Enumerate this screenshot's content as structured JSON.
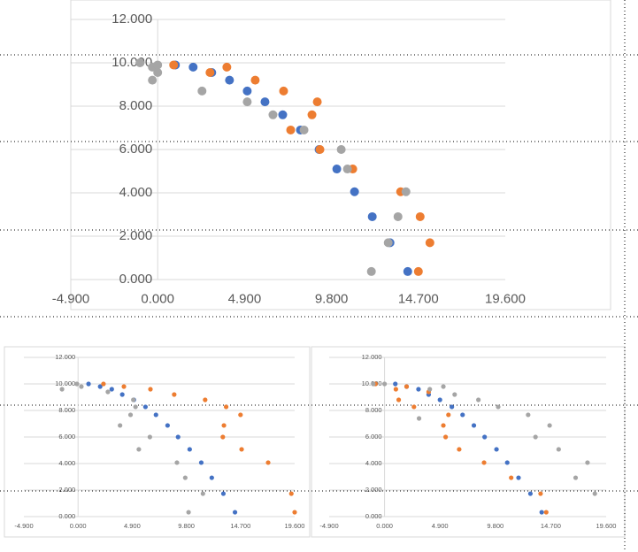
{
  "chart_data": [
    {
      "type": "scatter",
      "xlim": [
        -4.9,
        19.6
      ],
      "ylim": [
        0,
        12
      ],
      "grid": true,
      "xticks": [
        {
          "value": -4.9,
          "label": "-4.900"
        },
        {
          "value": 0,
          "label": "0.000"
        },
        {
          "value": 4.9,
          "label": "4.900"
        },
        {
          "value": 9.8,
          "label": "9.800"
        },
        {
          "value": 14.7,
          "label": "14.700"
        },
        {
          "value": 19.6,
          "label": "19.600"
        }
      ],
      "yticks": [
        {
          "value": 0,
          "label": "0.000"
        },
        {
          "value": 2,
          "label": "2.000"
        },
        {
          "value": 4,
          "label": "4.000"
        },
        {
          "value": 6,
          "label": "6.000"
        },
        {
          "value": 8,
          "label": "8.000"
        },
        {
          "value": 10,
          "label": "10.000"
        },
        {
          "value": 12,
          "label": "12.000"
        }
      ],
      "series": [
        {
          "color": "#4472c4",
          "x": [
            1.0,
            2.0,
            3.05,
            4.05,
            5.05,
            6.05,
            7.05,
            8.05,
            9.1,
            10.1,
            11.1,
            12.1,
            13.1,
            14.1
          ],
          "values": [
            9.9,
            9.8,
            9.55,
            9.2,
            8.7,
            8.2,
            7.6,
            6.9,
            6.0,
            5.1,
            4.05,
            2.9,
            1.7,
            0.37
          ]
        },
        {
          "color": "#ed7d31",
          "x": [
            0.9,
            2.95,
            3.9,
            5.5,
            7.1,
            8.7,
            9.0,
            7.5,
            9.15,
            11.0,
            13.7,
            14.8,
            15.35,
            14.7
          ],
          "values": [
            9.9,
            9.55,
            9.8,
            9.2,
            8.7,
            7.6,
            8.2,
            6.9,
            6.0,
            5.1,
            4.05,
            2.9,
            1.7,
            0.37
          ]
        },
        {
          "color": "#a5a5a5",
          "x": [
            -1.0,
            -0.3,
            0,
            0,
            -0.3,
            2.5,
            5.05,
            6.5,
            8.25,
            10.35,
            10.7,
            14.0,
            13.55,
            13.0,
            12.05
          ],
          "values": [
            10.0,
            9.8,
            9.9,
            9.55,
            9.2,
            8.7,
            8.2,
            7.6,
            6.9,
            6.0,
            5.1,
            4.05,
            2.9,
            1.7,
            0.37
          ]
        }
      ]
    },
    {
      "type": "scatter",
      "xlim": [
        -4.9,
        19.6
      ],
      "ylim": [
        0,
        12
      ],
      "grid": true,
      "xticks": [
        {
          "value": -4.9,
          "label": "-4.900"
        },
        {
          "value": 0,
          "label": "0.000"
        },
        {
          "value": 4.9,
          "label": "4.900"
        },
        {
          "value": 9.8,
          "label": "9.800"
        },
        {
          "value": 14.7,
          "label": "14.700"
        },
        {
          "value": 19.6,
          "label": "19.600"
        }
      ],
      "yticks": [
        {
          "value": 0,
          "label": "0.000"
        },
        {
          "value": 2,
          "label": "2.000"
        },
        {
          "value": 4,
          "label": "4.000"
        },
        {
          "value": 6,
          "label": "6.000"
        },
        {
          "value": 8,
          "label": "8.000"
        },
        {
          "value": 10,
          "label": "10.000"
        },
        {
          "value": 12,
          "label": "12.000"
        }
      ],
      "series": [
        {
          "color": "#4472c4",
          "x": [
            0.95,
            2.0,
            3.05,
            4.0,
            5.05,
            6.1,
            7.05,
            8.1,
            9.05,
            10.1,
            11.15,
            12.1,
            13.15,
            14.2
          ],
          "values": [
            10.0,
            9.8,
            9.6,
            9.2,
            8.8,
            8.27,
            7.67,
            6.87,
            6.0,
            5.07,
            4.07,
            2.93,
            1.73,
            0.33
          ]
        },
        {
          "color": "#ed7d31",
          "x": [
            2.3,
            4.15,
            6.55,
            8.7,
            11.5,
            13.4,
            14.7,
            13.2,
            13.1,
            14.8,
            17.2,
            19.3,
            19.6
          ],
          "values": [
            10.0,
            9.8,
            9.6,
            9.2,
            8.8,
            8.27,
            7.67,
            6.87,
            6.0,
            5.07,
            4.07,
            1.73,
            0.33
          ]
        },
        {
          "color": "#a5a5a5",
          "x": [
            -1.45,
            -0.1,
            0.3,
            2.7,
            3.8,
            4.75,
            5.5,
            6.5,
            8.95,
            9.7,
            10.0,
            11.3,
            5.2,
            5.0
          ],
          "values": [
            9.6,
            10.0,
            9.8,
            9.4,
            6.87,
            7.67,
            5.07,
            6.0,
            4.07,
            2.93,
            0.33,
            1.73,
            8.27,
            8.8
          ]
        }
      ]
    },
    {
      "type": "scatter",
      "xlim": [
        -4.9,
        19.6
      ],
      "ylim": [
        0,
        12
      ],
      "grid": true,
      "xticks": [
        {
          "value": -4.9,
          "label": "-4.900"
        },
        {
          "value": 0,
          "label": "0.000"
        },
        {
          "value": 4.9,
          "label": "4.900"
        },
        {
          "value": 9.8,
          "label": "9.800"
        },
        {
          "value": 14.7,
          "label": "14.700"
        },
        {
          "value": 19.6,
          "label": "19.600"
        }
      ],
      "yticks": [
        {
          "value": 0,
          "label": "0.000"
        },
        {
          "value": 2,
          "label": "2.000"
        },
        {
          "value": 4,
          "label": "4.000"
        },
        {
          "value": 6,
          "label": "6.000"
        },
        {
          "value": 8,
          "label": "8.000"
        },
        {
          "value": 10,
          "label": "10.000"
        },
        {
          "value": 12,
          "label": "12.000"
        }
      ],
      "series": [
        {
          "color": "#4472c4",
          "x": [
            0.95,
            1.95,
            3.0,
            3.9,
            4.9,
            5.95,
            6.9,
            7.9,
            8.85,
            9.9,
            10.85,
            11.85,
            12.9,
            13.9
          ],
          "values": [
            10.0,
            9.8,
            9.6,
            9.2,
            8.8,
            8.27,
            7.67,
            6.87,
            6.0,
            5.07,
            4.07,
            2.93,
            1.73,
            0.33
          ]
        },
        {
          "color": "#ed7d31",
          "x": [
            -0.8,
            1.0,
            1.25,
            1.95,
            2.6,
            3.9,
            5.2,
            5.4,
            5.65,
            6.6,
            8.8,
            11.2,
            13.8,
            14.3
          ],
          "values": [
            10.0,
            9.6,
            8.8,
            9.8,
            8.27,
            9.4,
            6.87,
            6.0,
            7.67,
            5.07,
            4.07,
            2.93,
            1.73,
            0.33
          ]
        },
        {
          "color": "#a5a5a5",
          "x": [
            -1.0,
            0,
            3.05,
            4.0,
            5.2,
            6.2,
            8.3,
            10.05,
            12.7,
            13.35,
            14.6,
            15.4,
            16.9,
            17.95,
            18.6
          ],
          "values": [
            10.0,
            10.0,
            7.4,
            9.6,
            9.8,
            9.2,
            8.8,
            8.27,
            7.67,
            6.0,
            6.87,
            5.07,
            2.93,
            4.07,
            1.73
          ]
        }
      ]
    }
  ]
}
